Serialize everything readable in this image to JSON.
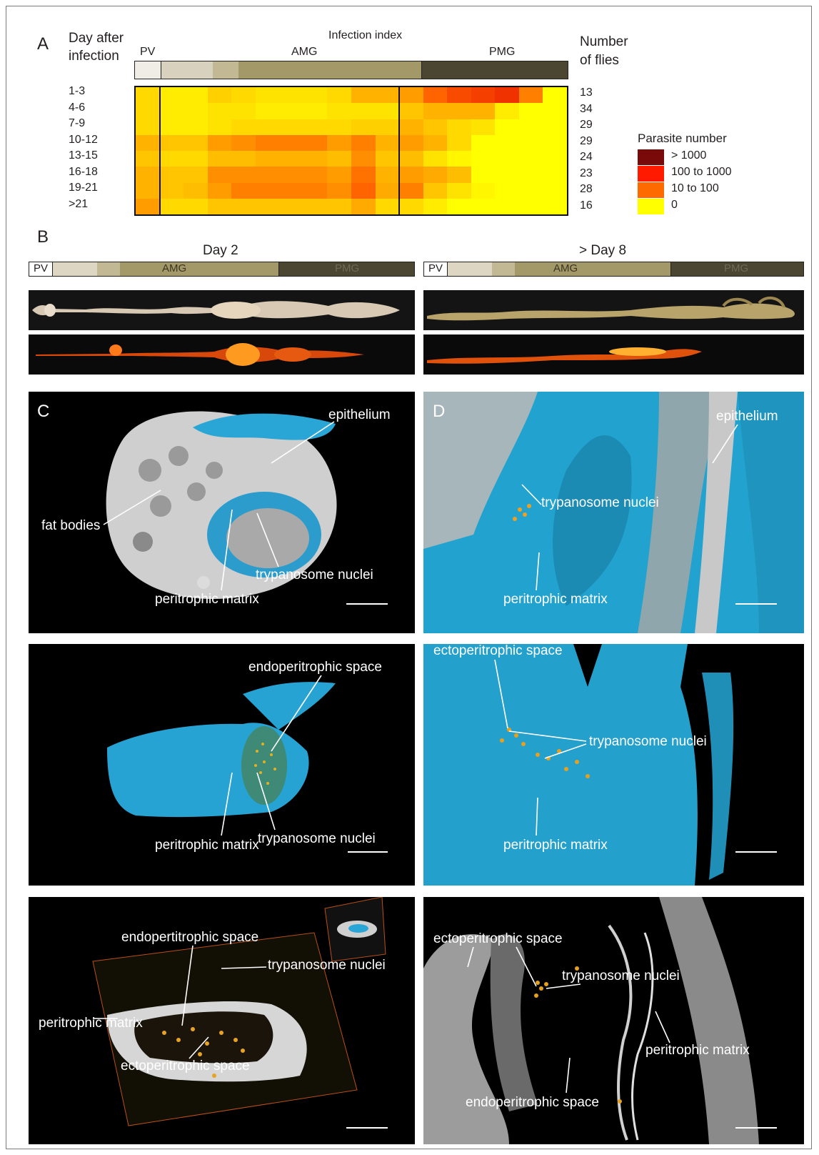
{
  "panelA": {
    "letter": "A",
    "day_header_1": "Day after",
    "day_header_2": "infection",
    "title": "Infection index",
    "seg_pv": "PV",
    "seg_amg": "AMG",
    "seg_pmg": "PMG",
    "flies_header_1": "Number",
    "flies_header_2": "of flies",
    "legend_title": "Parasite number",
    "legend": [
      {
        "label": "> 1000",
        "color": "#7a0a0a"
      },
      {
        "label": "100 to 1000",
        "color": "#ff1a00"
      },
      {
        "label": "10 to 100",
        "color": "#ff6a00"
      },
      {
        "label": "0",
        "color": "#ffff00"
      }
    ]
  },
  "chart_data": {
    "type": "heatmap",
    "title": "Infection index",
    "rows": [
      "1-3",
      "4-6",
      "7-9",
      "10-12",
      "13-15",
      "16-18",
      "19-21",
      ">21"
    ],
    "flies": [
      13,
      34,
      29,
      29,
      24,
      23,
      28,
      16
    ],
    "columns": 18,
    "regions": [
      {
        "name": "PV",
        "cols": 1
      },
      {
        "name": "AMG",
        "cols": 10
      },
      {
        "name": "PMG",
        "cols": 7
      }
    ],
    "scale": "0 (yellow) → >1000 (dark red)",
    "values": [
      [
        0.2,
        0.1,
        0.1,
        0.25,
        0.2,
        0.15,
        0.15,
        0.15,
        0.2,
        0.4,
        0.4,
        0.5,
        0.7,
        0.8,
        0.85,
        0.9,
        0.6,
        0
      ],
      [
        0.2,
        0.1,
        0.1,
        0.15,
        0.15,
        0.1,
        0.1,
        0.1,
        0.15,
        0.15,
        0.15,
        0.3,
        0.4,
        0.4,
        0.4,
        0.1,
        0,
        0
      ],
      [
        0.2,
        0.1,
        0.1,
        0.15,
        0.2,
        0.2,
        0.2,
        0.2,
        0.2,
        0.25,
        0.25,
        0.4,
        0.3,
        0.2,
        0.15,
        0,
        0,
        0
      ],
      [
        0.4,
        0.3,
        0.3,
        0.5,
        0.55,
        0.6,
        0.6,
        0.6,
        0.5,
        0.6,
        0.4,
        0.5,
        0.4,
        0.2,
        0,
        0,
        0,
        0
      ],
      [
        0.3,
        0.2,
        0.2,
        0.35,
        0.35,
        0.4,
        0.4,
        0.4,
        0.35,
        0.55,
        0.3,
        0.35,
        0.15,
        0.05,
        0,
        0,
        0,
        0
      ],
      [
        0.4,
        0.3,
        0.3,
        0.55,
        0.55,
        0.55,
        0.55,
        0.55,
        0.5,
        0.65,
        0.4,
        0.5,
        0.45,
        0.35,
        0,
        0,
        0,
        0
      ],
      [
        0.4,
        0.3,
        0.35,
        0.5,
        0.6,
        0.6,
        0.6,
        0.6,
        0.55,
        0.7,
        0.45,
        0.6,
        0.3,
        0.15,
        0.05,
        0,
        0,
        0
      ],
      [
        0.5,
        0.2,
        0.2,
        0.3,
        0.3,
        0.3,
        0.3,
        0.3,
        0.3,
        0.45,
        0.2,
        0.2,
        0.1,
        0,
        0,
        0,
        0,
        0
      ]
    ]
  },
  "panelB": {
    "letter": "B",
    "left_title": "Day 2",
    "right_title": "> Day 8",
    "seg_pv": "PV",
    "seg_amg": "AMG",
    "seg_pmg": "PMG"
  },
  "panelC": {
    "letter": "C",
    "row1": {
      "epithelium": "epithelium",
      "fat_bodies": "fat bodies",
      "trypanosome_nuclei": "trypanosome nuclei",
      "peritrophic_matrix": "peritrophic matrix"
    },
    "row2": {
      "endo_space": "endoperitrophic space",
      "trypanosome_nuclei": "trypanosome nuclei",
      "peritrophic_matrix": "peritrophic matrix"
    },
    "row3": {
      "endo_space": "endopertitrophic space",
      "trypanosome_nuclei": "trypanosome nuclei",
      "peritrophic_matrix": "peritrophic matrix",
      "ecto_space": "ectoperitrophic space"
    }
  },
  "panelD": {
    "letter": "D",
    "row1": {
      "epithelium": "epithelium",
      "trypanosome_nuclei": "trypanosome nuclei",
      "peritrophic_matrix": "peritrophic matrix"
    },
    "row2": {
      "ecto_space": "ectoperitrophic space",
      "trypanosome_nuclei": "trypanosome nuclei",
      "peritrophic_matrix": "peritrophic matrix"
    },
    "row3": {
      "ecto_space": "ectoperitrophic space",
      "trypanosome_nuclei": "trypanosome nuclei",
      "peritrophic_matrix": "peritrophic matrix",
      "endo_space": "endoperitrophic space"
    }
  }
}
